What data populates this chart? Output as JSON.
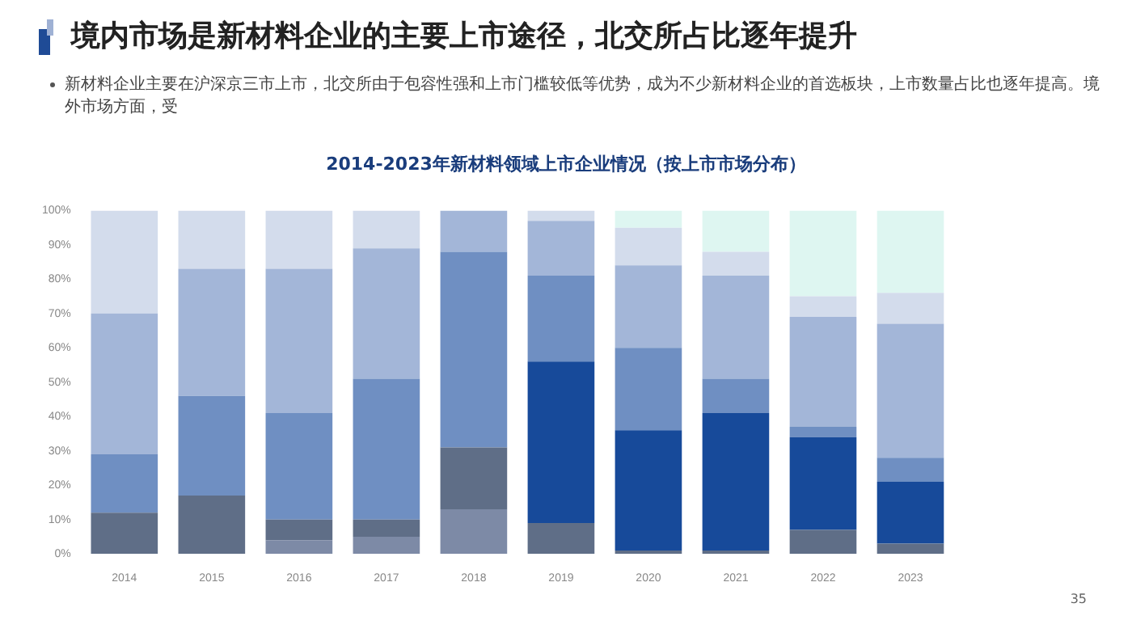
{
  "chart_data": {
    "type": "bar",
    "stacked": true,
    "title": "2014-2023年新材料领域上市企业情况（按上市市场分布）",
    "annotations": [
      "境内市场是新材料企业的主要上市途径，北交所占比逐年提升",
      "新材料企业主要在沪深京三市上市，北交所由于包容性强和上市门槛较低等优势，成为不少新材料企业的首选板块，上市数量占比也逐年提高。境外市场方面，受",
      "35"
    ],
    "categories": [
      "2014",
      "2015",
      "2016",
      "2017",
      "2018",
      "2019",
      "2020",
      "2021",
      "2022",
      "2023"
    ],
    "series": [
      {
        "color": "#7d8aa6",
        "values": [
          0,
          0,
          4,
          5,
          13,
          0,
          0,
          0,
          0,
          0
        ]
      },
      {
        "color": "#5f6e87",
        "values": [
          12,
          17,
          6,
          5,
          18,
          9,
          1,
          1,
          7,
          3
        ]
      },
      {
        "color": "#174a9a",
        "values": [
          0,
          0,
          0,
          0,
          0,
          47,
          35,
          40,
          27,
          18
        ]
      },
      {
        "color": "#6f8fc2",
        "values": [
          17,
          29,
          31,
          41,
          57,
          25,
          24,
          10,
          3,
          7
        ]
      },
      {
        "color": "#a3b6d8",
        "values": [
          41,
          37,
          42,
          38,
          12,
          16,
          24,
          30,
          32,
          39
        ]
      },
      {
        "color": "#d3dcec",
        "values": [
          30,
          17,
          17,
          11,
          0,
          3,
          11,
          7,
          6,
          9
        ]
      },
      {
        "color": "#def6f1",
        "values": [
          0,
          0,
          0,
          0,
          0,
          0,
          5,
          12,
          25,
          24
        ]
      }
    ],
    "ylim": [
      0,
      100
    ],
    "yticks": [
      {
        "value": 0,
        "label": "0%"
      },
      {
        "value": 10,
        "label": "10%"
      },
      {
        "value": 20,
        "label": "20%"
      },
      {
        "value": 30,
        "label": "30%"
      },
      {
        "value": 40,
        "label": "40%"
      },
      {
        "value": 50,
        "label": "50%"
      },
      {
        "value": 60,
        "label": "60%"
      },
      {
        "value": 70,
        "label": "70%"
      },
      {
        "value": 80,
        "label": "80%"
      },
      {
        "value": 90,
        "label": "90%"
      },
      {
        "value": 100,
        "label": "100%"
      }
    ],
    "grid": false,
    "legend": false
  }
}
